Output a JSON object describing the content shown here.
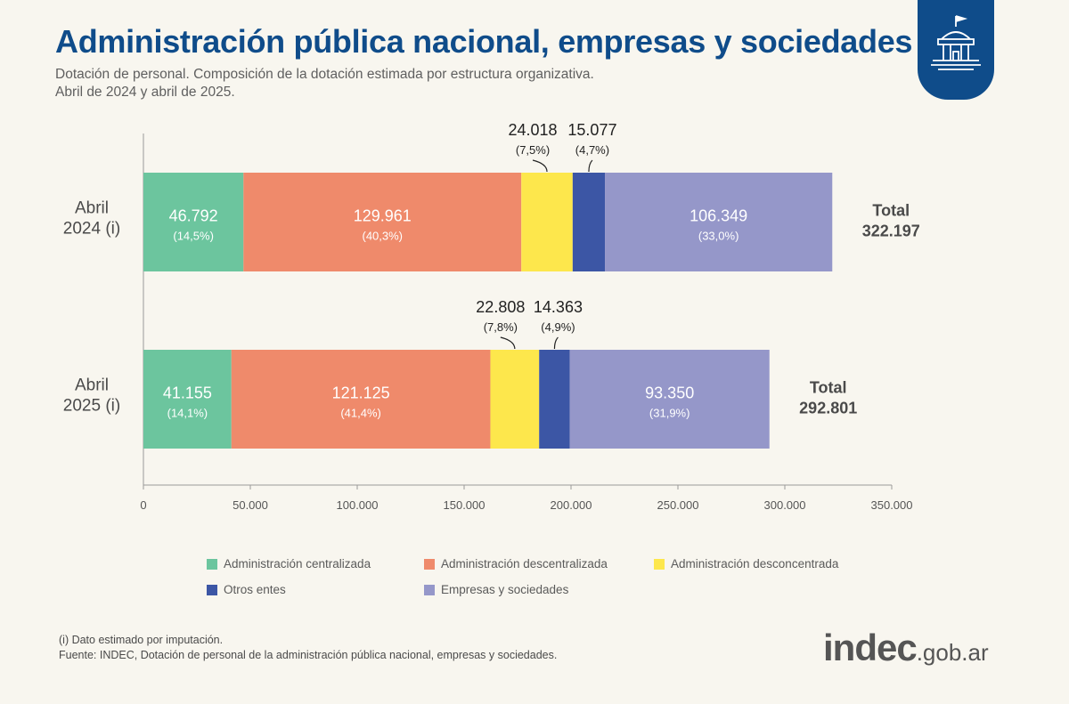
{
  "header": {
    "title": "Administración pública nacional, empresas y sociedades",
    "subtitle_line1": "Dotación de personal. Composición de la dotación estimada por estructura organizativa.",
    "subtitle_line2": "Abril de 2024 y abril de 2025."
  },
  "badge_icon": "government-building-icon",
  "chart_data": {
    "type": "bar",
    "orientation": "horizontal",
    "stacked": true,
    "title": "",
    "xlabel": "",
    "ylabel": "",
    "xlim": [
      0,
      350000
    ],
    "ticks": [
      0,
      50000,
      100000,
      150000,
      200000,
      250000,
      300000,
      350000
    ],
    "tick_labels": [
      "0",
      "50.000",
      "100.000",
      "150.000",
      "200.000",
      "250.000",
      "300.000",
      "350.000"
    ],
    "grid": false,
    "legend_position": "bottom",
    "categories": [
      {
        "line1": "Abril",
        "line2": "2024 (i)"
      },
      {
        "line1": "Abril",
        "line2": "2025 (i)"
      }
    ],
    "series": [
      {
        "name": "Administración centralizada",
        "color": "#6cc59e",
        "values": [
          46792,
          41155
        ],
        "labels": [
          "46.792",
          "41.155"
        ],
        "pct_labels": [
          "(14,5%)",
          "(14,1%)"
        ],
        "label_outside": false
      },
      {
        "name": "Administración descentralizada",
        "color": "#ef8a6b",
        "values": [
          129961,
          121125
        ],
        "labels": [
          "129.961",
          "121.125"
        ],
        "pct_labels": [
          "(40,3%)",
          "(41,4%)"
        ],
        "label_outside": false
      },
      {
        "name": "Administración desconcentrada",
        "color": "#fde74c",
        "values": [
          24018,
          22808
        ],
        "labels": [
          "24.018",
          "22.808"
        ],
        "pct_labels": [
          "(7,5%)",
          "(7,8%)"
        ],
        "label_outside": true
      },
      {
        "name": "Otros entes",
        "color": "#3c56a5",
        "values": [
          15077,
          14363
        ],
        "labels": [
          "15.077",
          "14.363"
        ],
        "pct_labels": [
          "(4,7%)",
          "(4,9%)"
        ],
        "label_outside": true
      },
      {
        "name": "Empresas y sociedades",
        "color": "#9597c9",
        "values": [
          106349,
          93350
        ],
        "labels": [
          "106.349",
          "93.350"
        ],
        "pct_labels": [
          "(33,0%)",
          "(31,9%)"
        ],
        "label_outside": false
      }
    ],
    "totals": {
      "label": "Total",
      "values": [
        322197,
        292801
      ],
      "value_labels": [
        "322.197",
        "292.801"
      ]
    }
  },
  "notes": {
    "footnote": "(i) Dato estimado por imputación.",
    "source": "Fuente: INDEC, Dotación de personal de la administración pública nacional, empresas y sociedades."
  },
  "logo": {
    "brand": "indec",
    "domain": ".gob.ar"
  }
}
